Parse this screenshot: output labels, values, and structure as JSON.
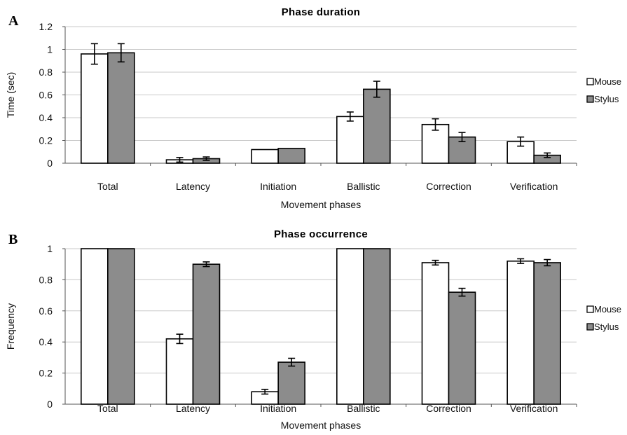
{
  "chart_data": [
    {
      "type": "bar",
      "panel": "A",
      "title": "Phase duration",
      "xlabel": "Movement phases",
      "ylabel": "Time (sec)",
      "ylim": [
        0,
        1.2
      ],
      "yticks": [
        0,
        0.2,
        0.4,
        0.6,
        0.8,
        1,
        1.2
      ],
      "ytick_labels": [
        "0",
        "0.2",
        "0.4",
        "0.6",
        "0.8",
        "1",
        "1.2"
      ],
      "categories": [
        "Total",
        "Latency",
        "Initiation",
        "Ballistic",
        "Correction",
        "Verification"
      ],
      "grid": true,
      "legend_position": "right",
      "series": [
        {
          "name": "Mouse",
          "color": "#ffffff",
          "values": [
            0.96,
            0.03,
            0.12,
            0.41,
            0.34,
            0.19
          ],
          "errors": [
            0.09,
            0.02,
            null,
            0.04,
            0.05,
            0.04
          ]
        },
        {
          "name": "Stylus",
          "color": "#8c8c8c",
          "values": [
            0.97,
            0.04,
            0.13,
            0.65,
            0.23,
            0.07
          ],
          "errors": [
            0.08,
            0.015,
            null,
            0.07,
            0.04,
            0.02
          ]
        }
      ]
    },
    {
      "type": "bar",
      "panel": "B",
      "title": "Phase occurrence",
      "xlabel": "Movement phases",
      "ylabel": "Frequency",
      "ylim": [
        0,
        1
      ],
      "yticks": [
        0,
        0.2,
        0.4,
        0.6,
        0.8,
        1
      ],
      "ytick_labels": [
        "0",
        "0.2",
        "0.4",
        "0.6",
        "0.8",
        "1"
      ],
      "categories": [
        "Total",
        "Latency",
        "Initiation",
        "Ballistic",
        "Correction",
        "Verification"
      ],
      "grid": true,
      "legend_position": "right",
      "series": [
        {
          "name": "Mouse",
          "color": "#ffffff",
          "values": [
            1,
            0.42,
            0.08,
            1,
            0.91,
            0.92
          ],
          "errors": [
            null,
            0.03,
            0.015,
            null,
            0.015,
            0.015
          ]
        },
        {
          "name": "Stylus",
          "color": "#8c8c8c",
          "values": [
            1,
            0.9,
            0.27,
            1,
            0.72,
            0.91
          ],
          "errors": [
            null,
            0.015,
            0.025,
            null,
            0.025,
            0.02
          ]
        }
      ]
    }
  ]
}
